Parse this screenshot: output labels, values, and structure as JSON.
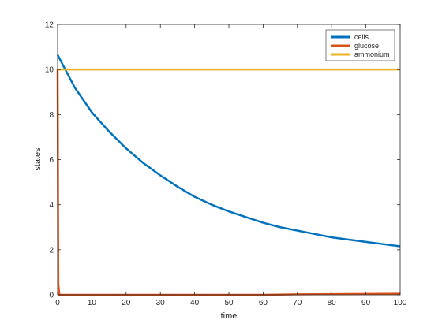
{
  "chart_data": {
    "type": "line",
    "title": "",
    "xlabel": "time",
    "ylabel": "states",
    "xlim": [
      0,
      100
    ],
    "ylim": [
      0,
      12
    ],
    "xticks": [
      0,
      10,
      20,
      30,
      40,
      50,
      60,
      70,
      80,
      90,
      100
    ],
    "yticks": [
      0,
      2,
      4,
      6,
      8,
      10,
      12
    ],
    "grid": false,
    "legend_position": "top-right",
    "series": [
      {
        "name": "cells",
        "color": "#0072BD",
        "x": [
          0,
          5,
          10,
          15,
          20,
          25,
          30,
          35,
          40,
          45,
          50,
          55,
          60,
          65,
          70,
          75,
          80,
          85,
          90,
          95,
          100
        ],
        "y": [
          10.65,
          9.2,
          8.1,
          7.25,
          6.5,
          5.85,
          5.3,
          4.8,
          4.35,
          4.0,
          3.7,
          3.45,
          3.2,
          3.0,
          2.85,
          2.7,
          2.55,
          2.45,
          2.35,
          2.25,
          2.15
        ]
      },
      {
        "name": "glucose",
        "color": "#D95319",
        "x": [
          0,
          0.2,
          0.5,
          10,
          20,
          30,
          40,
          50,
          60,
          70,
          80,
          90,
          100
        ],
        "y": [
          10.0,
          0.5,
          0.0,
          0.0,
          0.0,
          0.0,
          0.0,
          0.0,
          0.0,
          0.02,
          0.03,
          0.04,
          0.05
        ]
      },
      {
        "name": "ammonium",
        "color": "#EDB120",
        "x": [
          0,
          100
        ],
        "y": [
          10,
          10
        ]
      }
    ]
  }
}
